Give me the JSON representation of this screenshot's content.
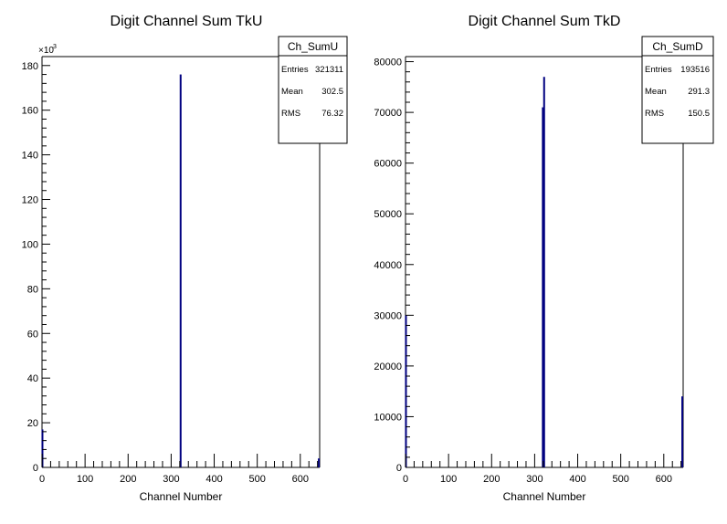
{
  "chart_data": [
    {
      "type": "bar",
      "title": "Digit Channel Sum TkU",
      "xlabel": "Channel Number",
      "ylabel": "",
      "xlim": [
        0,
        645
      ],
      "ylim": [
        0,
        184000
      ],
      "x_ticks": [
        "0",
        "100",
        "200",
        "300",
        "400",
        "500",
        "600"
      ],
      "y_ticks": [
        "0",
        "20",
        "40",
        "60",
        "80",
        "100",
        "120",
        "140",
        "160",
        "180"
      ],
      "y_multiplier": "×10",
      "y_multiplier_exp": "3",
      "series_color": "#000080",
      "bins": [
        {
          "x": 1,
          "y": 17000
        },
        {
          "x": 322,
          "y": 176000
        },
        {
          "x": 643,
          "y": 4000
        }
      ],
      "stats": {
        "name": "Ch_SumU",
        "rows": [
          {
            "label": "Entries",
            "value": "321311"
          },
          {
            "label": "Mean",
            "value": "302.5"
          },
          {
            "label": "RMS",
            "value": "76.32"
          }
        ]
      }
    },
    {
      "type": "bar",
      "title": "Digit Channel Sum TkD",
      "xlabel": "Channel Number",
      "ylabel": "",
      "xlim": [
        0,
        645
      ],
      "ylim": [
        0,
        81000
      ],
      "x_ticks": [
        "0",
        "100",
        "200",
        "300",
        "400",
        "500",
        "600"
      ],
      "y_ticks": [
        "0",
        "10000",
        "20000",
        "30000",
        "40000",
        "50000",
        "60000",
        "70000",
        "80000"
      ],
      "y_multiplier": "",
      "y_multiplier_exp": "",
      "series_color": "#000080",
      "bins": [
        {
          "x": 1,
          "y": 30000
        },
        {
          "x": 319,
          "y": 71000
        },
        {
          "x": 322,
          "y": 77000
        },
        {
          "x": 643,
          "y": 14000
        }
      ],
      "stats": {
        "name": "Ch_SumD",
        "rows": [
          {
            "label": "Entries",
            "value": "193516"
          },
          {
            "label": "Mean",
            "value": "291.3"
          },
          {
            "label": "RMS",
            "value": "150.5"
          }
        ]
      }
    }
  ]
}
